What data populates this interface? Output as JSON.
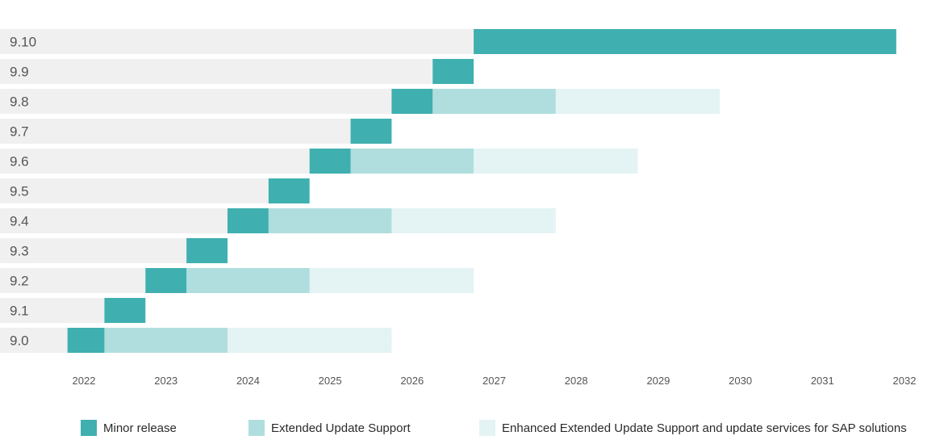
{
  "chart_data": {
    "type": "gantt",
    "title": "",
    "xlabel": "",
    "ylabel": "",
    "x_axis": {
      "min": 2021.85,
      "max": 2032.0,
      "ticks": [
        2022,
        2023,
        2024,
        2025,
        2026,
        2027,
        2028,
        2029,
        2030,
        2031,
        2032
      ],
      "tick_labels": [
        "2022",
        "2023",
        "2024",
        "2025",
        "2026",
        "2027",
        "2028",
        "2029",
        "2030",
        "2031",
        "2032"
      ]
    },
    "grid": false,
    "legend_position": "bottom",
    "categories": [
      "9.10",
      "9.9",
      "9.8",
      "9.7",
      "9.6",
      "9.5",
      "9.4",
      "9.3",
      "9.2",
      "9.1",
      "9.0"
    ],
    "series": [
      {
        "name": "Minor release",
        "color": "#40AFAF",
        "values": [
          {
            "version": "9.10",
            "start": 2026.75,
            "end": 2031.9
          },
          {
            "version": "9.9",
            "start": 2026.25,
            "end": 2026.75
          },
          {
            "version": "9.8",
            "start": 2025.75,
            "end": 2026.25
          },
          {
            "version": "9.7",
            "start": 2025.25,
            "end": 2025.75
          },
          {
            "version": "9.6",
            "start": 2024.75,
            "end": 2025.25
          },
          {
            "version": "9.5",
            "start": 2024.25,
            "end": 2024.75
          },
          {
            "version": "9.4",
            "start": 2023.75,
            "end": 2024.25
          },
          {
            "version": "9.3",
            "start": 2023.25,
            "end": 2023.75
          },
          {
            "version": "9.2",
            "start": 2022.75,
            "end": 2023.25
          },
          {
            "version": "9.1",
            "start": 2022.25,
            "end": 2022.75
          },
          {
            "version": "9.0",
            "start": 2021.8,
            "end": 2022.25
          }
        ]
      },
      {
        "name": "Extended Update Support",
        "color": "#B0DEDE",
        "values": [
          {
            "version": "9.8",
            "start": 2026.25,
            "end": 2027.75
          },
          {
            "version": "9.6",
            "start": 2025.25,
            "end": 2026.75
          },
          {
            "version": "9.4",
            "start": 2024.25,
            "end": 2025.75
          },
          {
            "version": "9.2",
            "start": 2023.25,
            "end": 2024.75
          },
          {
            "version": "9.0",
            "start": 2022.25,
            "end": 2023.75
          }
        ]
      },
      {
        "name": "Enhanced Extended Update Support and update services for SAP solutions",
        "color": "#E4F3F3",
        "values": [
          {
            "version": "9.8",
            "start": 2027.75,
            "end": 2029.75
          },
          {
            "version": "9.6",
            "start": 2026.75,
            "end": 2028.75
          },
          {
            "version": "9.4",
            "start": 2025.75,
            "end": 2027.75
          },
          {
            "version": "9.2",
            "start": 2024.75,
            "end": 2026.75
          },
          {
            "version": "9.0",
            "start": 2023.75,
            "end": 2025.75
          }
        ]
      }
    ],
    "background_bar_color": "#F0F0F0"
  },
  "legend": {
    "items": [
      {
        "label": "Minor release",
        "color": "#40AFAF"
      },
      {
        "label": "Extended Update Support",
        "color": "#B0DEDE"
      },
      {
        "label": "Enhanced Extended Update Support and update services for SAP solutions",
        "color": "#E4F3F3"
      }
    ]
  }
}
